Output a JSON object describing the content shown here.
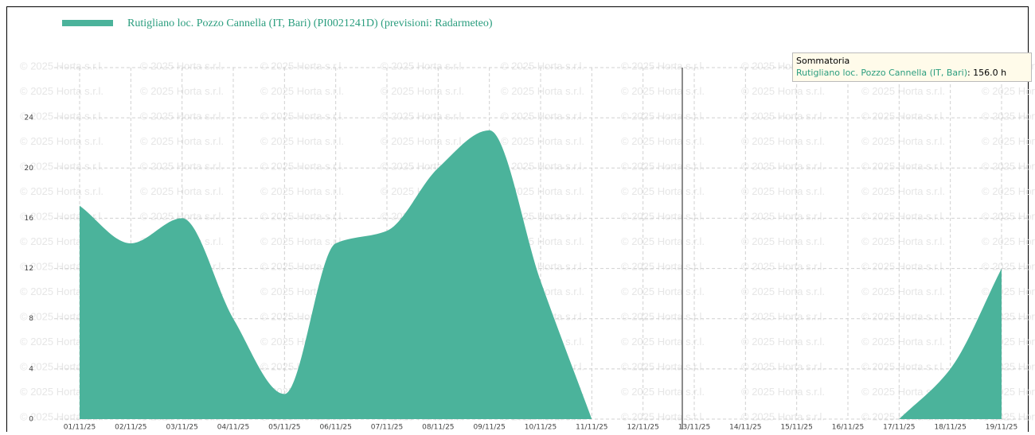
{
  "chart_data": {
    "type": "area",
    "categories": [
      "01/11/25",
      "02/11/25",
      "03/11/25",
      "04/11/25",
      "05/11/25",
      "06/11/25",
      "07/11/25",
      "08/11/25",
      "09/11/25",
      "10/11/25",
      "11/11/25",
      "12/11/25",
      "13/11/25",
      "14/11/25",
      "15/11/25",
      "16/11/25",
      "17/11/25",
      "18/11/25",
      "19/11/25"
    ],
    "series": [
      {
        "name": "Rutigliano loc. Pozzo Cannella (IT, Bari) (PI0021241D) (previsioni: Radarmeteo)",
        "color": "#4bb39b",
        "values": [
          17,
          14,
          16,
          8,
          2,
          14,
          15,
          20,
          23,
          11,
          0,
          null,
          null,
          null,
          null,
          null,
          0,
          4,
          12
        ]
      }
    ],
    "ylim": [
      0,
      28
    ],
    "yticks": [
      0,
      4,
      8,
      12,
      16,
      20,
      24
    ],
    "grid": true,
    "watermark": "© 2025 Horta s.r.l.",
    "tooltip": {
      "title": "Sommatoria",
      "series": "Rutigliano loc. Pozzo Cannella (IT, Bari)",
      "value_label": ": 156.0 h"
    }
  }
}
